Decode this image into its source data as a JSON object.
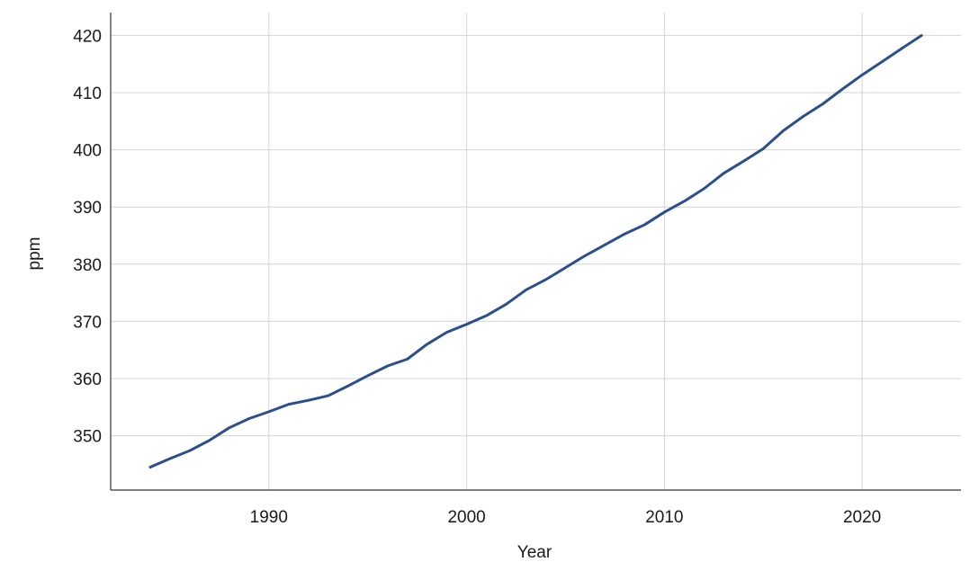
{
  "chart_data": {
    "type": "line",
    "title": "",
    "xlabel": "Year",
    "ylabel": "ppm",
    "xlim": [
      1982,
      2025
    ],
    "ylim": [
      340.5,
      424
    ],
    "x_ticks": [
      1990,
      2000,
      2010,
      2020
    ],
    "y_ticks": [
      350,
      360,
      370,
      380,
      390,
      400,
      410,
      420
    ],
    "grid": true,
    "legend": "none",
    "series": [
      {
        "color": "#2b4f8c",
        "x": [
          1984,
          1985,
          1986,
          1987,
          1988,
          1989,
          1990,
          1991,
          1992,
          1993,
          1994,
          1995,
          1996,
          1997,
          1998,
          1999,
          2000,
          2001,
          2002,
          2003,
          2004,
          2005,
          2006,
          2007,
          2008,
          2009,
          2010,
          2011,
          2012,
          2013,
          2014,
          2015,
          2016,
          2017,
          2018,
          2019,
          2020,
          2021,
          2022,
          2023
        ],
        "y": [
          344.5,
          346.0,
          347.4,
          349.2,
          351.4,
          353.0,
          354.2,
          355.5,
          356.2,
          357.0,
          358.7,
          360.5,
          362.2,
          363.4,
          366.0,
          368.1,
          369.5,
          371.0,
          373.0,
          375.5,
          377.3,
          379.4,
          381.5,
          383.4,
          385.3,
          386.9,
          389.1,
          391.0,
          393.2,
          395.9,
          398.0,
          400.2,
          403.3,
          405.8,
          408.0,
          410.6,
          413.1,
          415.4,
          417.7,
          420.0
        ]
      }
    ]
  }
}
